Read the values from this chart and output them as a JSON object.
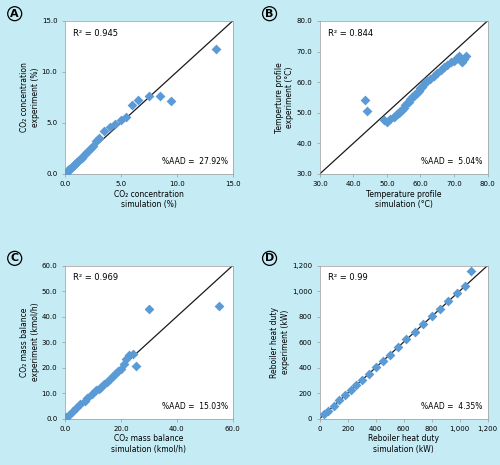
{
  "background_color": "#c5ecf5",
  "plot_bg": "#ffffff",
  "marker_color": "#5b9bd5",
  "marker_size": 5,
  "line_color": "#1a1a1a",
  "A": {
    "label": "A",
    "xlabel": "CO₂ concentration\nsimulation (%)",
    "ylabel": "CO₂ concentration\nexperiment (%)",
    "r2": "R² = 0.945",
    "aad": "%AAD =  27.92%",
    "xlim": [
      0,
      15.0
    ],
    "ylim": [
      0,
      15.0
    ],
    "xticks": [
      0.0,
      5.0,
      10.0,
      15.0
    ],
    "yticks": [
      0.0,
      5.0,
      10.0,
      15.0
    ],
    "x": [
      0.1,
      0.15,
      0.2,
      0.25,
      0.3,
      0.4,
      0.5,
      0.6,
      0.7,
      0.8,
      0.9,
      1.0,
      1.1,
      1.2,
      1.3,
      1.5,
      1.7,
      1.9,
      2.1,
      2.3,
      2.5,
      2.8,
      3.0,
      3.5,
      4.0,
      4.5,
      5.0,
      5.5,
      6.0,
      6.5,
      7.5,
      8.5,
      9.5,
      13.5
    ],
    "y": [
      0.1,
      0.18,
      0.22,
      0.28,
      0.35,
      0.45,
      0.55,
      0.65,
      0.75,
      0.85,
      0.95,
      1.1,
      1.2,
      1.3,
      1.5,
      1.6,
      1.8,
      2.0,
      2.2,
      2.5,
      2.7,
      3.2,
      3.5,
      4.2,
      4.6,
      4.9,
      5.3,
      5.6,
      6.8,
      7.2,
      7.6,
      7.6,
      7.1,
      12.2
    ]
  },
  "B": {
    "label": "B",
    "xlabel": "Temperature profile\nsimulation (°C)",
    "ylabel": "Temperture profile\nexperiment (°C)",
    "r2": "R² = 0.844",
    "aad": "%AAD =  5.04%",
    "xlim": [
      30.0,
      80.0
    ],
    "ylim": [
      30.0,
      80.0
    ],
    "xticks": [
      30.0,
      40.0,
      50.0,
      60.0,
      70.0,
      80.0
    ],
    "yticks": [
      30.0,
      40.0,
      50.0,
      60.0,
      70.0,
      80.0
    ],
    "x": [
      43.5,
      44.0,
      49.0,
      50.0,
      51.0,
      52.0,
      52.5,
      53.0,
      53.5,
      54.0,
      54.5,
      55.0,
      55.5,
      56.0,
      56.5,
      57.0,
      57.5,
      58.0,
      58.5,
      59.0,
      59.5,
      60.0,
      60.5,
      61.0,
      61.5,
      62.0,
      63.0,
      64.0,
      65.0,
      66.0,
      67.0,
      68.0,
      69.0,
      70.0,
      71.0,
      71.5,
      72.0,
      72.5,
      73.0,
      73.5
    ],
    "y": [
      54.0,
      50.5,
      47.5,
      47.0,
      48.0,
      48.5,
      49.0,
      49.5,
      50.0,
      50.5,
      51.0,
      51.5,
      52.5,
      53.0,
      53.5,
      54.5,
      55.0,
      55.5,
      56.0,
      56.5,
      57.0,
      58.0,
      58.5,
      59.5,
      60.0,
      60.5,
      61.0,
      62.0,
      63.0,
      64.0,
      65.0,
      65.5,
      66.5,
      67.0,
      68.0,
      68.5,
      67.0,
      66.5,
      67.5,
      68.5
    ]
  },
  "C": {
    "label": "C",
    "xlabel": "CO₂ mass balance\nsimulation (kmol/h)",
    "ylabel": "CO₂ mass balance\nexperiment (kmol/h)",
    "r2": "R² = 0.969",
    "aad": "%AAD =  15.03%",
    "xlim": [
      0,
      60.0
    ],
    "ylim": [
      0,
      60.0
    ],
    "xticks": [
      0.0,
      20.0,
      40.0,
      60.0
    ],
    "yticks": [
      0.0,
      10.0,
      20.0,
      30.0,
      40.0,
      50.0,
      60.0
    ],
    "x": [
      0.5,
      1.5,
      3.0,
      4.0,
      5.5,
      7.0,
      8.0,
      9.5,
      11.0,
      12.0,
      13.0,
      14.0,
      15.0,
      16.0,
      17.0,
      18.0,
      19.0,
      20.0,
      21.0,
      22.0,
      23.0,
      24.5,
      25.5,
      30.0,
      55.0
    ],
    "y": [
      0.5,
      1.5,
      3.0,
      4.0,
      5.5,
      7.0,
      8.0,
      9.5,
      11.0,
      11.5,
      12.5,
      13.5,
      14.5,
      15.5,
      16.5,
      17.5,
      18.5,
      19.5,
      21.5,
      23.5,
      25.0,
      25.5,
      20.5,
      43.0,
      44.0
    ]
  },
  "D": {
    "label": "D",
    "xlabel": "Reboiler heat duty\nsimulation (kW)",
    "ylabel": "Reboiler heat duty\nexperiment (kW)",
    "r2": "R² = 0.99",
    "aad": "%AAD =  4.35%",
    "xlim": [
      0,
      1200
    ],
    "ylim": [
      0,
      1200
    ],
    "xticks": [
      0,
      200,
      400,
      600,
      800,
      1000,
      1200
    ],
    "yticks": [
      0,
      200,
      400,
      600,
      800,
      1000,
      1200
    ],
    "x": [
      30,
      60,
      100,
      140,
      180,
      220,
      260,
      300,
      350,
      400,
      450,
      500,
      560,
      620,
      680,
      740,
      800,
      860,
      920,
      980,
      1040,
      1080
    ],
    "y": [
      32,
      62,
      100,
      142,
      182,
      222,
      262,
      302,
      352,
      402,
      452,
      502,
      562,
      622,
      682,
      742,
      802,
      862,
      922,
      982,
      1042,
      1155
    ]
  }
}
